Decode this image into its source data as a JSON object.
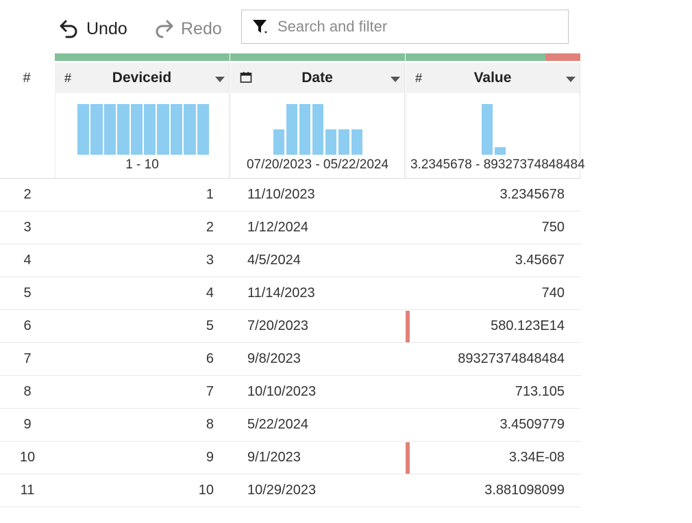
{
  "toolbar": {
    "undo_label": "Undo",
    "redo_label": "Redo",
    "search_placeholder": "Search and filter"
  },
  "colors": {
    "valid": "#82c09a",
    "invalid": "#e0827a",
    "histogram": "#8ccdf1"
  },
  "table": {
    "index_header": "#",
    "columns": [
      {
        "name": "Deviceid",
        "type_icon": "#",
        "type": "number",
        "range": "1 - 10",
        "valid_fraction": 1.0,
        "histogram": [
          1,
          1,
          1,
          1,
          1,
          1,
          1,
          1,
          1,
          1
        ]
      },
      {
        "name": "Date",
        "type_icon": "📅",
        "type": "date",
        "range": "07/20/2023 - 05/22/2024",
        "valid_fraction": 1.0,
        "histogram": [
          1,
          2,
          2,
          2,
          1,
          1,
          1
        ]
      },
      {
        "name": "Value",
        "type_icon": "#",
        "type": "number",
        "range": "3.2345678 - 89327374848484",
        "valid_fraction": 0.8,
        "histogram": [
          7,
          1
        ]
      }
    ],
    "rows": [
      {
        "num": "2",
        "deviceid": "1",
        "date": "11/10/2023",
        "value": "3.2345678",
        "flag": false
      },
      {
        "num": "3",
        "deviceid": "2",
        "date": "1/12/2024",
        "value": "750",
        "flag": false
      },
      {
        "num": "4",
        "deviceid": "3",
        "date": "4/5/2024",
        "value": "3.45667",
        "flag": false
      },
      {
        "num": "5",
        "deviceid": "4",
        "date": "11/14/2023",
        "value": "740",
        "flag": false
      },
      {
        "num": "6",
        "deviceid": "5",
        "date": "7/20/2023",
        "value": "580.123E14",
        "flag": true
      },
      {
        "num": "7",
        "deviceid": "6",
        "date": "9/8/2023",
        "value": "89327374848484",
        "flag": false
      },
      {
        "num": "8",
        "deviceid": "7",
        "date": "10/10/2023",
        "value": "713.105",
        "flag": false
      },
      {
        "num": "9",
        "deviceid": "8",
        "date": "5/22/2024",
        "value": "3.4509779",
        "flag": false
      },
      {
        "num": "10",
        "deviceid": "9",
        "date": "9/1/2023",
        "value": "3.34E-08",
        "flag": true
      },
      {
        "num": "11",
        "deviceid": "10",
        "date": "10/29/2023",
        "value": "3.881098099",
        "flag": false
      }
    ]
  }
}
